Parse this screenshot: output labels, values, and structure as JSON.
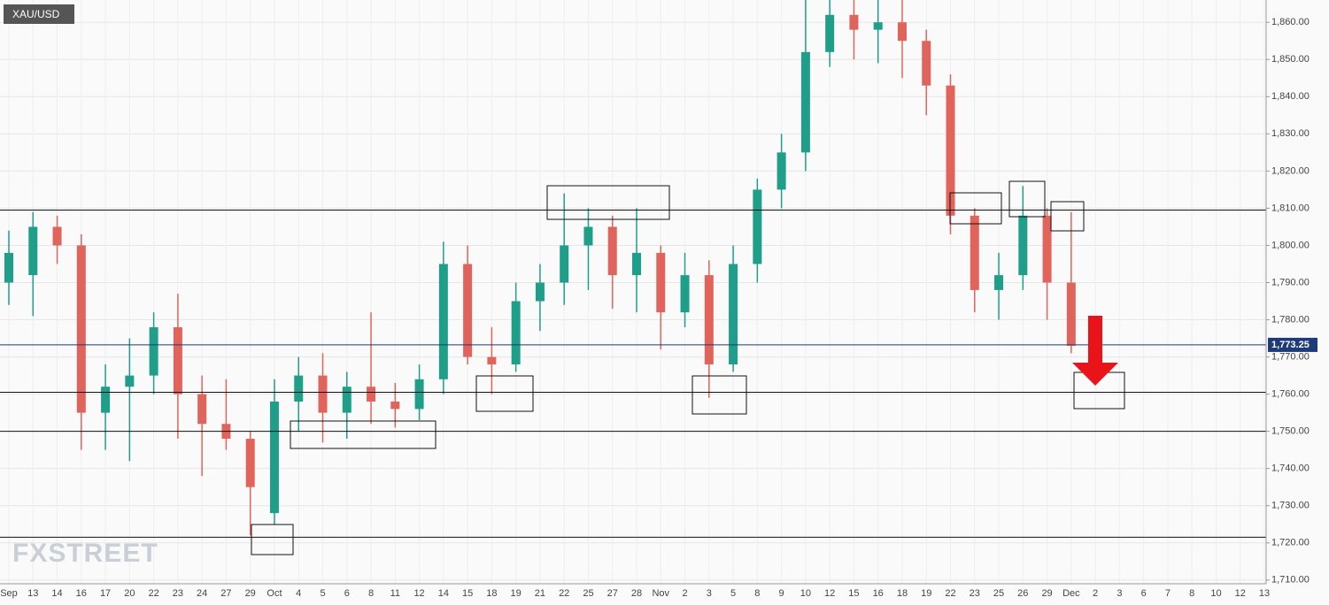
{
  "chart_data": {
    "type": "candlestick",
    "title": "XAU/USD",
    "watermark": "FXSTREET",
    "categories": [
      "Sep",
      "13",
      "14",
      "16",
      "17",
      "20",
      "22",
      "23",
      "24",
      "27",
      "29",
      "Oct",
      "4",
      "5",
      "6",
      "8",
      "11",
      "12",
      "14",
      "15",
      "18",
      "19",
      "21",
      "22",
      "25",
      "27",
      "28",
      "Nov",
      "2",
      "3",
      "5",
      "8",
      "9",
      "10",
      "12",
      "15",
      "16",
      "18",
      "19",
      "22",
      "23",
      "25",
      "26",
      "29",
      "Dec",
      "2",
      "3",
      "6",
      "7",
      "8",
      "10",
      "12",
      "13"
    ],
    "open": [
      1790,
      1792,
      1805,
      1800,
      1755,
      1762,
      1765,
      1778,
      1760,
      1752,
      1748,
      1728,
      1758,
      1765,
      1755,
      1762,
      1758,
      1756,
      1764,
      1795,
      1770,
      1768,
      1785,
      1790,
      1800,
      1805,
      1792,
      1798,
      1782,
      1792,
      1768,
      1795,
      1815,
      1825,
      1852,
      1862,
      1858,
      1860,
      1855,
      1843,
      1808,
      1788,
      1792,
      1808,
      1790,
      null,
      null,
      null,
      null,
      null,
      null,
      null,
      null
    ],
    "high": [
      1804,
      1809,
      1808,
      1803,
      1768,
      1775,
      1782,
      1787,
      1765,
      1764,
      1750,
      1764,
      1770,
      1771,
      1766,
      1782,
      1763,
      1768,
      1801,
      1800,
      1778,
      1790,
      1795,
      1814,
      1810,
      1808,
      1810,
      1800,
      1798,
      1796,
      1800,
      1818,
      1830,
      1866,
      1866,
      1866,
      1866,
      1866,
      1858,
      1846,
      1810,
      1798,
      1816,
      1810,
      1809,
      null,
      null,
      null,
      null,
      null,
      null,
      null,
      null
    ],
    "low": [
      1784,
      1781,
      1795,
      1745,
      1745,
      1742,
      1760,
      1748,
      1738,
      1745,
      1722,
      1725,
      1750,
      1747,
      1748,
      1752,
      1751,
      1753,
      1760,
      1768,
      1760,
      1766,
      1777,
      1784,
      1788,
      1783,
      1782,
      1772,
      1778,
      1759,
      1766,
      1790,
      1810,
      1820,
      1848,
      1850,
      1849,
      1845,
      1835,
      1803,
      1782,
      1780,
      1788,
      1780,
      1771,
      null,
      null,
      null,
      null,
      null,
      null,
      null,
      null
    ],
    "close": [
      1798,
      1805,
      1800,
      1755,
      1762,
      1765,
      1778,
      1760,
      1752,
      1748,
      1735,
      1758,
      1765,
      1755,
      1762,
      1758,
      1756,
      1764,
      1795,
      1770,
      1768,
      1785,
      1790,
      1800,
      1805,
      1792,
      1798,
      1782,
      1792,
      1768,
      1795,
      1815,
      1825,
      1852,
      1862,
      1858,
      1860,
      1855,
      1843,
      1808,
      1788,
      1792,
      1808,
      1790,
      1773,
      null,
      null,
      null,
      null,
      null,
      null,
      null,
      null
    ],
    "up_color": "#1f9e89",
    "down_color": "#e0645c",
    "last_price": {
      "value": 1773.25,
      "label": "1,773.25"
    },
    "ylim": [
      1709,
      1866
    ],
    "yticks": [
      {
        "value": 1710,
        "label": "1,710.00"
      },
      {
        "value": 1720,
        "label": "1,720.00"
      },
      {
        "value": 1730,
        "label": "1,730.00"
      },
      {
        "value": 1740,
        "label": "1,740.00"
      },
      {
        "value": 1750,
        "label": "1,750.00"
      },
      {
        "value": 1760,
        "label": "1,760.00"
      },
      {
        "value": 1770,
        "label": "1,770.00"
      },
      {
        "value": 1780,
        "label": "1,780.00"
      },
      {
        "value": 1790,
        "label": "1,790.00"
      },
      {
        "value": 1800,
        "label": "1,800.00"
      },
      {
        "value": 1810,
        "label": "1,810.00"
      },
      {
        "value": 1820,
        "label": "1,820.00"
      },
      {
        "value": 1830,
        "label": "1,830.00"
      },
      {
        "value": 1840,
        "label": "1,840.00"
      },
      {
        "value": 1850,
        "label": "1,850.00"
      },
      {
        "value": 1860,
        "label": "1,860.00"
      }
    ],
    "grid": true
  }
}
